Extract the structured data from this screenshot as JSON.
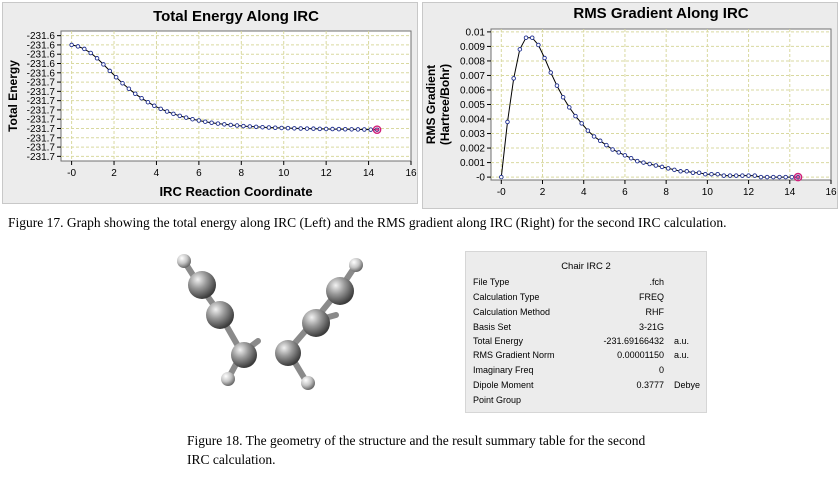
{
  "chart_data": [
    {
      "type": "line",
      "title": "Total Energy Along IRC",
      "xlabel": "IRC Reaction Coordinate",
      "ylabel": "Total Energy",
      "xlim": [
        -0.5,
        16
      ],
      "ylim": [
        -231.72,
        -231.58
      ],
      "x_ticks": [
        0,
        2,
        4,
        6,
        8,
        10,
        12,
        14,
        16
      ],
      "x_tick_labels": [
        "-0",
        "2",
        "4",
        "6",
        "8",
        "10",
        "12",
        "14",
        "16"
      ],
      "y_ticks": [
        -231.585,
        -231.595,
        -231.605,
        -231.615,
        -231.625,
        -231.635,
        -231.645,
        -231.655,
        -231.665,
        -231.675,
        -231.685,
        -231.695,
        -231.705,
        -231.715
      ],
      "y_tick_labels": [
        "-231.6",
        "-231.6",
        "-231.6",
        "-231.6",
        "-231.6",
        "-231.7",
        "-231.7",
        "-231.7",
        "-231.7",
        "-231.7",
        "-231.7",
        "-231.7",
        "-231.7",
        "-231.7"
      ],
      "grid": true,
      "x": [
        0.0,
        0.3,
        0.6,
        0.9,
        1.2,
        1.5,
        1.8,
        2.1,
        2.4,
        2.7,
        3.0,
        3.3,
        3.6,
        3.9,
        4.2,
        4.5,
        4.8,
        5.1,
        5.4,
        5.7,
        6.0,
        6.3,
        6.6,
        6.9,
        7.2,
        7.5,
        7.8,
        8.1,
        8.4,
        8.7,
        9.0,
        9.3,
        9.6,
        9.9,
        10.2,
        10.5,
        10.8,
        11.1,
        11.4,
        11.7,
        12.0,
        12.3,
        12.6,
        12.9,
        13.2,
        13.5,
        13.8,
        14.1,
        14.4
      ],
      "values": [
        -231.595,
        -231.5966,
        -231.5993,
        -231.6037,
        -231.6094,
        -231.616,
        -231.623,
        -231.6298,
        -231.6363,
        -231.6422,
        -231.6476,
        -231.6524,
        -231.6567,
        -231.6605,
        -231.6638,
        -231.6667,
        -231.6692,
        -231.6714,
        -231.6733,
        -231.675,
        -231.6764,
        -231.6777,
        -231.6788,
        -231.6797,
        -231.6805,
        -231.6812,
        -231.6818,
        -231.6824,
        -231.6828,
        -231.6832,
        -231.6836,
        -231.6839,
        -231.6842,
        -231.6844,
        -231.6846,
        -231.6848,
        -231.685,
        -231.6851,
        -231.6852,
        -231.6854,
        -231.6855,
        -231.6856,
        -231.6857,
        -231.6858,
        -231.6859,
        -231.686,
        -231.6861,
        -231.6862,
        -231.6863
      ],
      "highlight_index": 48
    },
    {
      "type": "line",
      "title": "RMS Gradient Along IRC",
      "xlabel": "",
      "ylabel": "RMS Gradient (Hartree/Bohr)",
      "ylabel_lines": [
        "RMS Gradient",
        "(Hartree/Bohr)"
      ],
      "xlim": [
        -0.5,
        16
      ],
      "ylim": [
        -0.0002,
        0.0102
      ],
      "x_ticks": [
        0,
        2,
        4,
        6,
        8,
        10,
        12,
        14,
        16
      ],
      "x_tick_labels": [
        "-0",
        "2",
        "4",
        "6",
        "8",
        "10",
        "12",
        "14",
        "16"
      ],
      "y_ticks": [
        0,
        0.001,
        0.002,
        0.003,
        0.004,
        0.005,
        0.006,
        0.007,
        0.008,
        0.009,
        0.01
      ],
      "y_tick_labels": [
        "-0",
        "0.001",
        "0.002",
        "0.003",
        "0.004",
        "0.005",
        "0.006",
        "0.007",
        "0.008",
        "0.009",
        "0.01"
      ],
      "grid": true,
      "x": [
        0.0,
        0.3,
        0.6,
        0.9,
        1.2,
        1.5,
        1.8,
        2.1,
        2.4,
        2.7,
        3.0,
        3.3,
        3.6,
        3.9,
        4.2,
        4.5,
        4.8,
        5.1,
        5.4,
        5.7,
        6.0,
        6.3,
        6.6,
        6.9,
        7.2,
        7.5,
        7.8,
        8.1,
        8.4,
        8.7,
        9.0,
        9.3,
        9.6,
        9.9,
        10.2,
        10.5,
        10.8,
        11.1,
        11.4,
        11.7,
        12.0,
        12.3,
        12.6,
        12.9,
        13.2,
        13.5,
        13.8,
        14.1,
        14.4
      ],
      "values": [
        0.0,
        0.0038,
        0.0068,
        0.0088,
        0.0096,
        0.0096,
        0.0091,
        0.0082,
        0.0072,
        0.0063,
        0.0055,
        0.0048,
        0.0042,
        0.0037,
        0.0032,
        0.0028,
        0.0025,
        0.0022,
        0.0019,
        0.0017,
        0.0015,
        0.0013,
        0.0011,
        0.001,
        0.0009,
        0.0008,
        0.0007,
        0.0006,
        0.0005,
        0.0004,
        0.0004,
        0.0003,
        0.0003,
        0.0002,
        0.0002,
        0.0002,
        0.0001,
        0.0001,
        0.0001,
        0.0001,
        0.0001,
        0.0001,
        0.0,
        0.0,
        0.0,
        0.0,
        0.0,
        0.0,
        0.0
      ],
      "highlight_index": 48
    }
  ],
  "captions": {
    "figure17": "Figure 17. Graph showing the total energy along IRC (Left) and the RMS gradient along IRC (Right) for the second IRC calculation.",
    "figure18_line1": "Figure 18. The geometry of the structure and the result summary table for the second",
    "figure18_line2": "IRC calculation."
  },
  "summary_table": {
    "title": "Chair IRC 2",
    "rows": [
      {
        "label": "File Type",
        "value": ".fch",
        "unit": ""
      },
      {
        "label": "Calculation Type",
        "value": "FREQ",
        "unit": ""
      },
      {
        "label": "Calculation Method",
        "value": "RHF",
        "unit": ""
      },
      {
        "label": "Basis Set",
        "value": "3-21G",
        "unit": ""
      },
      {
        "label": "Total Energy",
        "value": "-231.69166432",
        "unit": "a.u."
      },
      {
        "label": "RMS Gradient Norm",
        "value": "0.00001150",
        "unit": "a.u."
      },
      {
        "label": "Imaginary Freq",
        "value": "0",
        "unit": ""
      },
      {
        "label": "Dipole Moment",
        "value": "0.3777",
        "unit": "Debye"
      },
      {
        "label": "Point Group",
        "value": "",
        "unit": ""
      }
    ]
  },
  "colors": {
    "panel_bg": "#ececec",
    "plot_bg": "#ffffff",
    "grid": "#d9d9a0",
    "line": "#000000",
    "marker": "#1f2f8f",
    "highlight": "#d0207a"
  }
}
